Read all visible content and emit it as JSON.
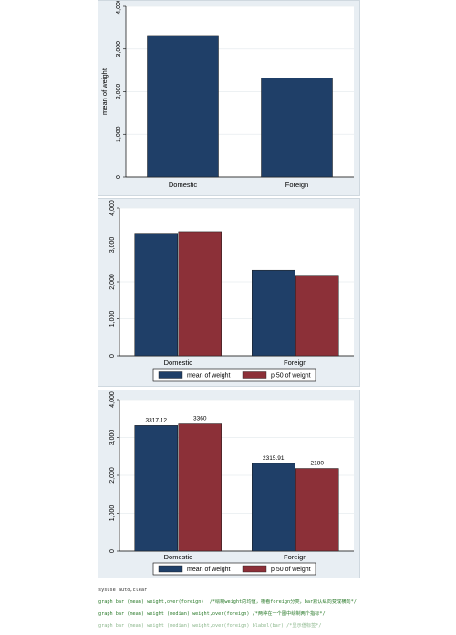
{
  "colors": {
    "navy": "#1f3f68",
    "maroon": "#8c3038",
    "panel_bg": "#e8eef3",
    "plot_bg": "#ffffff"
  },
  "chart_data": [
    {
      "type": "bar",
      "categories": [
        "Domestic",
        "Foreign"
      ],
      "series": [
        {
          "name": "mean of weight",
          "values": [
            3317.12,
            2315.91
          ]
        }
      ],
      "ylabel": "mean of weight",
      "ylim": [
        0,
        4000
      ],
      "yticks": [
        "0",
        "1,000",
        "2,000",
        "3,000",
        "4,000"
      ],
      "legend": "none",
      "data_labels": []
    },
    {
      "type": "bar",
      "categories": [
        "Domestic",
        "Foreign"
      ],
      "series": [
        {
          "name": "mean of weight",
          "values": [
            3317.12,
            2315.91
          ]
        },
        {
          "name": "p 50 of weight",
          "values": [
            3360,
            2180
          ]
        }
      ],
      "ylim": [
        0,
        4000
      ],
      "yticks": [
        "0",
        "1,000",
        "2,000",
        "3,000",
        "4,000"
      ],
      "legend": "bottom",
      "data_labels": []
    },
    {
      "type": "bar",
      "categories": [
        "Domestic",
        "Foreign"
      ],
      "series": [
        {
          "name": "mean of weight",
          "values": [
            3317.12,
            2315.91
          ]
        },
        {
          "name": "p 50 of weight",
          "values": [
            3360,
            2180
          ]
        }
      ],
      "ylim": [
        0,
        4000
      ],
      "yticks": [
        "0",
        "1,000",
        "2,000",
        "3,000",
        "4,000"
      ],
      "legend": "bottom",
      "data_labels": [
        "3317.12",
        "3360",
        "2315.91",
        "2180"
      ]
    }
  ],
  "code_lines": [
    "sysuse auto,clear",
    "graph bar (mean) weight,over(foreign)  /*绘制weight的均值，横看foreign分类，bar默认纵向变成横向*/",
    "graph bar (mean) weight (median) weight,over(foreign) /*两种在一个图中绘制两个指标*/",
    "graph bar (mean) weight (median) weight,over(foreign) blabel(bar) /*显示值标签*/"
  ]
}
